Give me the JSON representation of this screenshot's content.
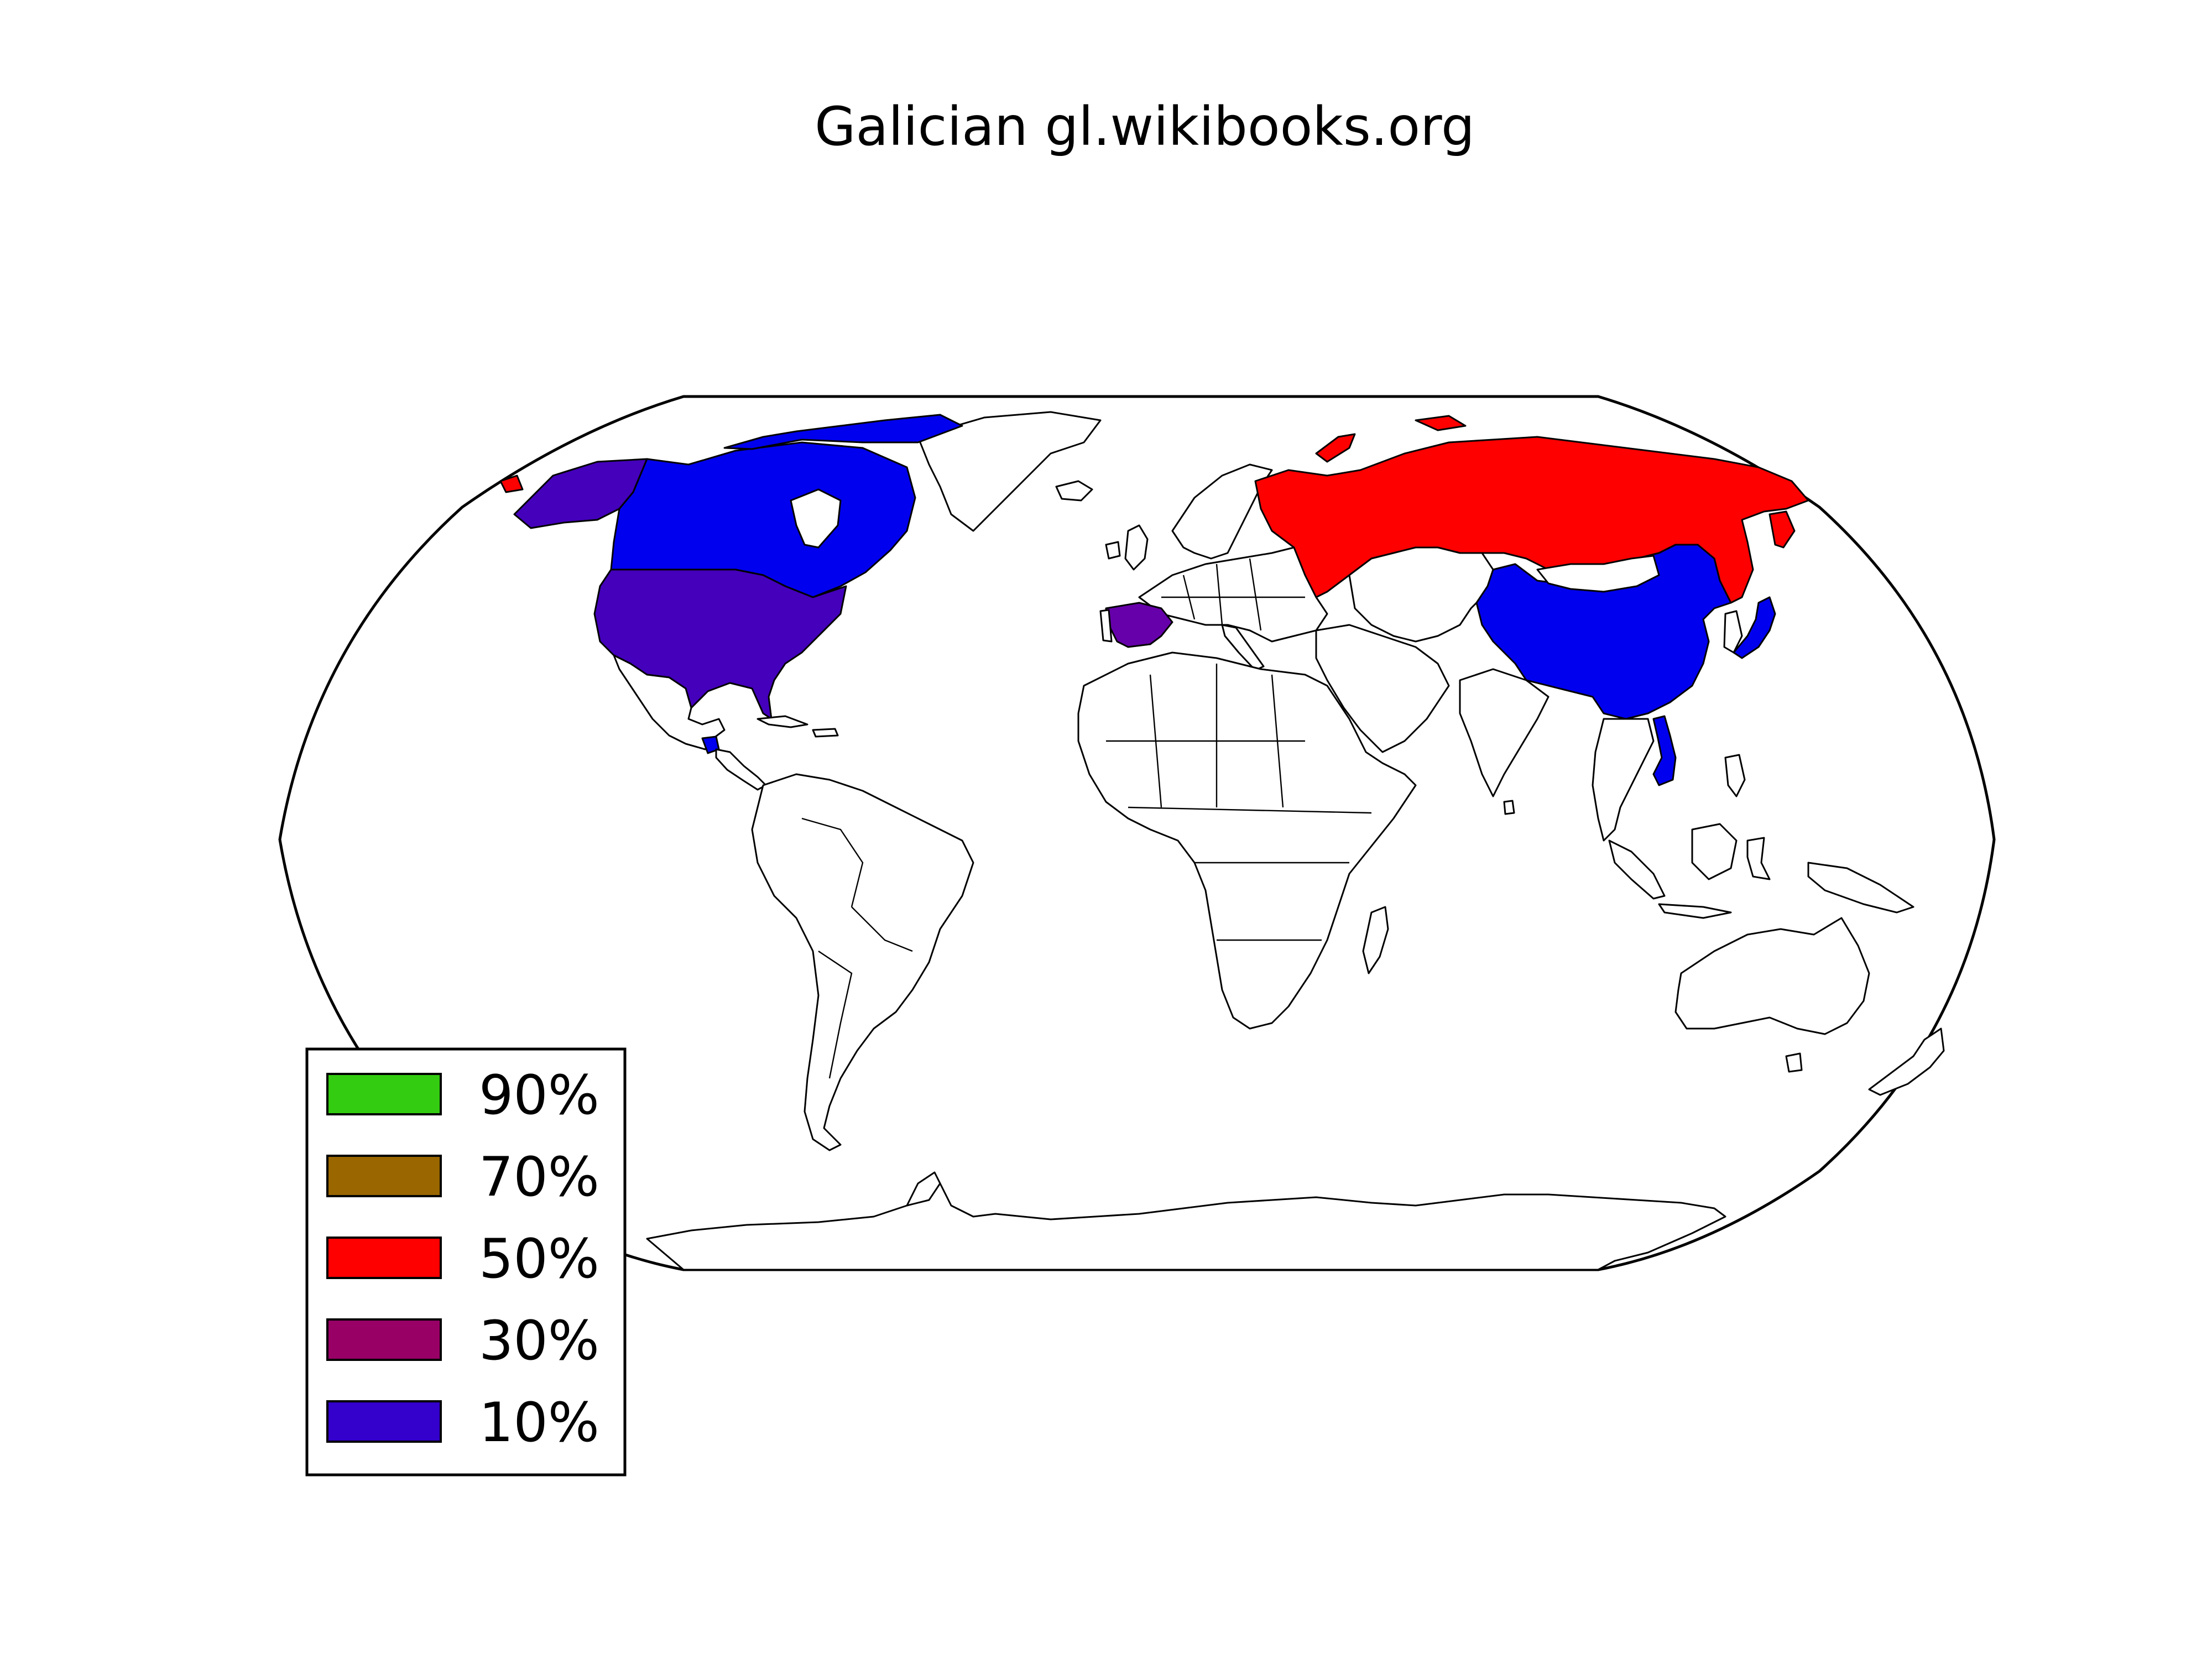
{
  "title": "Galician gl.wikibooks.org",
  "colors": {
    "c90": "#33cc11",
    "c70": "#996600",
    "c50": "#ff0000",
    "c30": "#990066",
    "c10": "#3300cc",
    "ocean": "#ffffff",
    "land": "#ffffff"
  },
  "legend": {
    "placement": "lower-left",
    "items": [
      {
        "label": "90%",
        "color": "#33cc11"
      },
      {
        "label": "70%",
        "color": "#996600"
      },
      {
        "label": "50%",
        "color": "#ff0000"
      },
      {
        "label": "30%",
        "color": "#990066"
      },
      {
        "label": "10%",
        "color": "#3300cc"
      }
    ]
  },
  "regions": [
    {
      "name": "Russia",
      "color": "#ff0000"
    },
    {
      "name": "Alaska",
      "color": "#4400bb"
    },
    {
      "name": "United States",
      "color": "#4400bb"
    },
    {
      "name": "Spain",
      "color": "#6600aa"
    },
    {
      "name": "Canada",
      "color": "#0000ee"
    },
    {
      "name": "China",
      "color": "#0000ee"
    },
    {
      "name": "Japan",
      "color": "#0000ee"
    },
    {
      "name": "Vietnam",
      "color": "#0000ee"
    },
    {
      "name": "Guatemala",
      "color": "#0000ee"
    }
  ]
}
